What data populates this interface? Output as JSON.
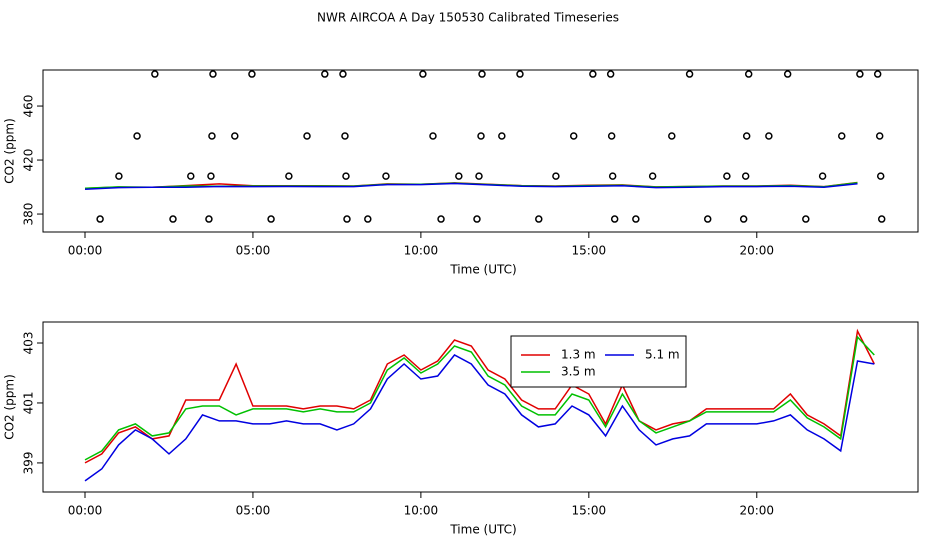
{
  "chart_data": [
    {
      "type": "line",
      "title": "NWR AIRCOA A  Day 150530  Calibrated Timeseries",
      "xlabel": "Time (UTC)",
      "ylabel": "CO2 (ppm)",
      "x": [
        0,
        1,
        2,
        3,
        4,
        5,
        6,
        7,
        8,
        9,
        10,
        11,
        12,
        13,
        14,
        15,
        16,
        17,
        18,
        19,
        20,
        21,
        22,
        23
      ],
      "series": [
        {
          "color": "#e00000",
          "values": [
            399.0,
            400.0,
            399.8,
            401.1,
            402.3,
            400.9,
            400.9,
            400.9,
            400.8,
            402.3,
            402.1,
            403.1,
            402.1,
            401.1,
            400.8,
            401.3,
            401.6,
            400.1,
            400.4,
            400.8,
            400.8,
            401.3,
            400.3,
            403.4
          ]
        },
        {
          "color": "#00c000",
          "values": [
            399.1,
            400.1,
            399.9,
            400.8,
            400.6,
            400.8,
            400.8,
            400.8,
            400.7,
            402.1,
            402.0,
            402.9,
            401.9,
            400.9,
            400.6,
            401.1,
            401.3,
            400.0,
            400.4,
            400.7,
            400.7,
            401.1,
            400.2,
            403.2
          ]
        },
        {
          "color": "#0000e0",
          "values": [
            398.4,
            399.6,
            399.8,
            399.8,
            400.4,
            400.3,
            400.4,
            400.3,
            400.3,
            401.8,
            401.8,
            402.6,
            401.6,
            400.6,
            400.3,
            400.6,
            400.9,
            399.6,
            399.9,
            400.3,
            400.3,
            400.6,
            399.8,
            402.4
          ]
        }
      ],
      "points": {
        "x": [
          2.08,
          3.81,
          4.97,
          7.14,
          7.68,
          10.06,
          11.82,
          12.95,
          15.12,
          15.65,
          18.0,
          19.76,
          20.92,
          23.07,
          23.6,
          1.55,
          3.78,
          4.46,
          6.61,
          7.74,
          10.36,
          11.79,
          12.41,
          14.55,
          15.68,
          17.47,
          19.7,
          20.36,
          22.53,
          23.66,
          1.01,
          3.15,
          3.75,
          6.07,
          7.77,
          8.96,
          11.13,
          11.73,
          14.02,
          15.71,
          16.9,
          19.11,
          19.67,
          21.96,
          23.69,
          0.45,
          2.62,
          3.69,
          5.54,
          7.8,
          8.42,
          10.6,
          11.67,
          13.51,
          15.77,
          16.4,
          18.54,
          19.61,
          21.46,
          23.72
        ],
        "y": [
          483.7,
          483.7,
          483.7,
          483.7,
          483.7,
          483.7,
          483.7,
          483.7,
          483.7,
          483.7,
          483.7,
          483.7,
          483.7,
          483.7,
          483.7,
          437.8,
          437.8,
          437.8,
          437.8,
          437.8,
          437.8,
          437.8,
          437.8,
          437.8,
          437.8,
          437.8,
          437.8,
          437.8,
          437.8,
          437.8,
          408.1,
          408.1,
          408.1,
          408.1,
          408.1,
          408.1,
          408.1,
          408.1,
          408.1,
          408.1,
          408.1,
          408.1,
          408.1,
          408.1,
          408.1,
          376.3,
          376.3,
          376.3,
          376.3,
          376.3,
          376.3,
          376.3,
          376.3,
          376.3,
          376.3,
          376.3,
          376.3,
          376.3,
          376.3,
          376.3
        ]
      },
      "xlim": [
        -1.25,
        24.8
      ],
      "ylim": [
        366.7,
        486.7
      ],
      "xticks": [
        {
          "value": 0,
          "label": "00:00"
        },
        {
          "value": 5,
          "label": "05:00"
        },
        {
          "value": 10,
          "label": "10:00"
        },
        {
          "value": 15,
          "label": "15:00"
        },
        {
          "value": 20,
          "label": "20:00"
        }
      ],
      "yticks": [
        380,
        420,
        460
      ]
    },
    {
      "type": "line",
      "xlabel": "Time (UTC)",
      "ylabel": "CO2 (ppm)",
      "legend": "top",
      "x": [
        0,
        0.5,
        1,
        1.5,
        2,
        2.5,
        3,
        3.5,
        4,
        4.5,
        5,
        5.5,
        6,
        6.5,
        7,
        7.5,
        8,
        8.5,
        9,
        9.5,
        10,
        10.5,
        11,
        11.5,
        12,
        12.5,
        13,
        13.5,
        14,
        14.5,
        15,
        15.5,
        16,
        16.5,
        17,
        17.5,
        18,
        18.5,
        19,
        19.5,
        20,
        20.5,
        21,
        21.5,
        22,
        22.5,
        23,
        23.5
      ],
      "series": [
        {
          "name": "1.3 m",
          "color": "#e00000",
          "values": [
            399.0,
            399.3,
            400.0,
            400.2,
            399.8,
            399.9,
            401.1,
            401.1,
            401.1,
            402.3,
            400.9,
            400.9,
            400.9,
            400.8,
            400.9,
            400.9,
            400.8,
            401.1,
            402.3,
            402.6,
            402.1,
            402.4,
            403.1,
            402.9,
            402.1,
            401.8,
            401.1,
            400.8,
            400.8,
            401.6,
            401.3,
            400.3,
            401.6,
            400.4,
            400.1,
            400.3,
            400.4,
            400.8,
            400.8,
            400.8,
            400.8,
            400.8,
            401.3,
            400.6,
            400.3,
            399.9,
            403.4,
            402.3
          ]
        },
        {
          "name": "3.5 m",
          "color": "#00c000",
          "values": [
            399.1,
            399.4,
            400.1,
            400.3,
            399.9,
            400.0,
            400.8,
            400.9,
            400.9,
            400.6,
            400.8,
            400.8,
            400.8,
            400.7,
            400.8,
            400.7,
            400.7,
            401.0,
            402.1,
            402.5,
            402.0,
            402.3,
            402.9,
            402.7,
            401.9,
            401.6,
            400.9,
            400.6,
            400.6,
            401.3,
            401.1,
            400.2,
            401.3,
            400.4,
            400.0,
            400.2,
            400.4,
            400.7,
            400.7,
            400.7,
            400.7,
            400.7,
            401.1,
            400.5,
            400.2,
            399.8,
            403.2,
            402.6
          ]
        },
        {
          "name": "5.1 m",
          "color": "#0000e0",
          "values": [
            398.4,
            398.8,
            399.6,
            400.1,
            399.8,
            399.3,
            399.8,
            400.6,
            400.4,
            400.4,
            400.3,
            400.3,
            400.4,
            400.3,
            400.3,
            400.1,
            400.3,
            400.8,
            401.8,
            402.3,
            401.8,
            401.9,
            402.6,
            402.3,
            401.6,
            401.3,
            400.6,
            400.2,
            400.3,
            400.9,
            400.6,
            399.9,
            400.9,
            400.1,
            399.6,
            399.8,
            399.9,
            400.3,
            400.3,
            400.3,
            400.3,
            400.4,
            400.6,
            400.1,
            399.8,
            399.4,
            402.4,
            402.3
          ]
        }
      ],
      "xlim": [
        -1.25,
        24.8
      ],
      "ylim": [
        398.03,
        403.7
      ],
      "xticks": [
        {
          "value": 0,
          "label": "00:00"
        },
        {
          "value": 5,
          "label": "05:00"
        },
        {
          "value": 10,
          "label": "10:00"
        },
        {
          "value": 15,
          "label": "15:00"
        },
        {
          "value": 20,
          "label": "20:00"
        }
      ],
      "yticks": [
        399,
        401,
        403
      ]
    }
  ]
}
